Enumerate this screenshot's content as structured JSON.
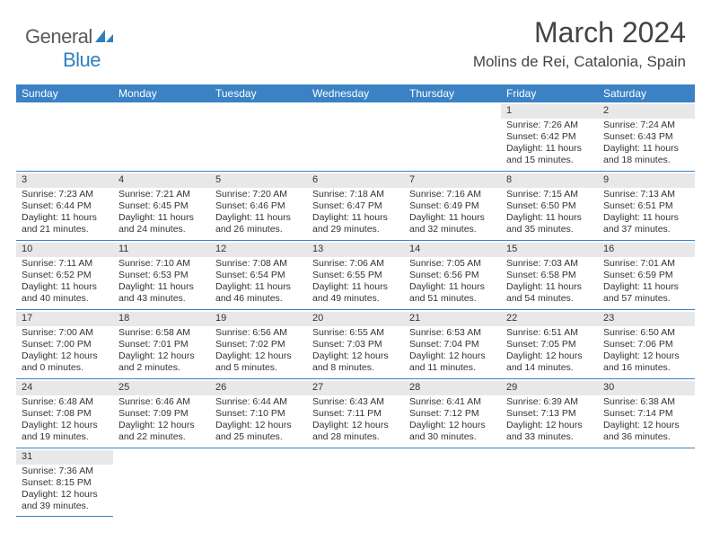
{
  "brand": {
    "text1": "General",
    "text2": "Blue"
  },
  "title": "March 2024",
  "location": "Molins de Rei, Catalonia, Spain",
  "colors": {
    "header_bg": "#3a82c4",
    "week_border": "#3a82c4",
    "daynum_bg": "#e8e8e8",
    "text": "#333333"
  },
  "dow": [
    "Sunday",
    "Monday",
    "Tuesday",
    "Wednesday",
    "Thursday",
    "Friday",
    "Saturday"
  ],
  "weeks": [
    [
      {
        "n": "",
        "lines": []
      },
      {
        "n": "",
        "lines": []
      },
      {
        "n": "",
        "lines": []
      },
      {
        "n": "",
        "lines": []
      },
      {
        "n": "",
        "lines": []
      },
      {
        "n": "1",
        "lines": [
          "Sunrise: 7:26 AM",
          "Sunset: 6:42 PM",
          "Daylight: 11 hours and 15 minutes."
        ]
      },
      {
        "n": "2",
        "lines": [
          "Sunrise: 7:24 AM",
          "Sunset: 6:43 PM",
          "Daylight: 11 hours and 18 minutes."
        ]
      }
    ],
    [
      {
        "n": "3",
        "lines": [
          "Sunrise: 7:23 AM",
          "Sunset: 6:44 PM",
          "Daylight: 11 hours and 21 minutes."
        ]
      },
      {
        "n": "4",
        "lines": [
          "Sunrise: 7:21 AM",
          "Sunset: 6:45 PM",
          "Daylight: 11 hours and 24 minutes."
        ]
      },
      {
        "n": "5",
        "lines": [
          "Sunrise: 7:20 AM",
          "Sunset: 6:46 PM",
          "Daylight: 11 hours and 26 minutes."
        ]
      },
      {
        "n": "6",
        "lines": [
          "Sunrise: 7:18 AM",
          "Sunset: 6:47 PM",
          "Daylight: 11 hours and 29 minutes."
        ]
      },
      {
        "n": "7",
        "lines": [
          "Sunrise: 7:16 AM",
          "Sunset: 6:49 PM",
          "Daylight: 11 hours and 32 minutes."
        ]
      },
      {
        "n": "8",
        "lines": [
          "Sunrise: 7:15 AM",
          "Sunset: 6:50 PM",
          "Daylight: 11 hours and 35 minutes."
        ]
      },
      {
        "n": "9",
        "lines": [
          "Sunrise: 7:13 AM",
          "Sunset: 6:51 PM",
          "Daylight: 11 hours and 37 minutes."
        ]
      }
    ],
    [
      {
        "n": "10",
        "lines": [
          "Sunrise: 7:11 AM",
          "Sunset: 6:52 PM",
          "Daylight: 11 hours and 40 minutes."
        ]
      },
      {
        "n": "11",
        "lines": [
          "Sunrise: 7:10 AM",
          "Sunset: 6:53 PM",
          "Daylight: 11 hours and 43 minutes."
        ]
      },
      {
        "n": "12",
        "lines": [
          "Sunrise: 7:08 AM",
          "Sunset: 6:54 PM",
          "Daylight: 11 hours and 46 minutes."
        ]
      },
      {
        "n": "13",
        "lines": [
          "Sunrise: 7:06 AM",
          "Sunset: 6:55 PM",
          "Daylight: 11 hours and 49 minutes."
        ]
      },
      {
        "n": "14",
        "lines": [
          "Sunrise: 7:05 AM",
          "Sunset: 6:56 PM",
          "Daylight: 11 hours and 51 minutes."
        ]
      },
      {
        "n": "15",
        "lines": [
          "Sunrise: 7:03 AM",
          "Sunset: 6:58 PM",
          "Daylight: 11 hours and 54 minutes."
        ]
      },
      {
        "n": "16",
        "lines": [
          "Sunrise: 7:01 AM",
          "Sunset: 6:59 PM",
          "Daylight: 11 hours and 57 minutes."
        ]
      }
    ],
    [
      {
        "n": "17",
        "lines": [
          "Sunrise: 7:00 AM",
          "Sunset: 7:00 PM",
          "Daylight: 12 hours and 0 minutes."
        ]
      },
      {
        "n": "18",
        "lines": [
          "Sunrise: 6:58 AM",
          "Sunset: 7:01 PM",
          "Daylight: 12 hours and 2 minutes."
        ]
      },
      {
        "n": "19",
        "lines": [
          "Sunrise: 6:56 AM",
          "Sunset: 7:02 PM",
          "Daylight: 12 hours and 5 minutes."
        ]
      },
      {
        "n": "20",
        "lines": [
          "Sunrise: 6:55 AM",
          "Sunset: 7:03 PM",
          "Daylight: 12 hours and 8 minutes."
        ]
      },
      {
        "n": "21",
        "lines": [
          "Sunrise: 6:53 AM",
          "Sunset: 7:04 PM",
          "Daylight: 12 hours and 11 minutes."
        ]
      },
      {
        "n": "22",
        "lines": [
          "Sunrise: 6:51 AM",
          "Sunset: 7:05 PM",
          "Daylight: 12 hours and 14 minutes."
        ]
      },
      {
        "n": "23",
        "lines": [
          "Sunrise: 6:50 AM",
          "Sunset: 7:06 PM",
          "Daylight: 12 hours and 16 minutes."
        ]
      }
    ],
    [
      {
        "n": "24",
        "lines": [
          "Sunrise: 6:48 AM",
          "Sunset: 7:08 PM",
          "Daylight: 12 hours and 19 minutes."
        ]
      },
      {
        "n": "25",
        "lines": [
          "Sunrise: 6:46 AM",
          "Sunset: 7:09 PM",
          "Daylight: 12 hours and 22 minutes."
        ]
      },
      {
        "n": "26",
        "lines": [
          "Sunrise: 6:44 AM",
          "Sunset: 7:10 PM",
          "Daylight: 12 hours and 25 minutes."
        ]
      },
      {
        "n": "27",
        "lines": [
          "Sunrise: 6:43 AM",
          "Sunset: 7:11 PM",
          "Daylight: 12 hours and 28 minutes."
        ]
      },
      {
        "n": "28",
        "lines": [
          "Sunrise: 6:41 AM",
          "Sunset: 7:12 PM",
          "Daylight: 12 hours and 30 minutes."
        ]
      },
      {
        "n": "29",
        "lines": [
          "Sunrise: 6:39 AM",
          "Sunset: 7:13 PM",
          "Daylight: 12 hours and 33 minutes."
        ]
      },
      {
        "n": "30",
        "lines": [
          "Sunrise: 6:38 AM",
          "Sunset: 7:14 PM",
          "Daylight: 12 hours and 36 minutes."
        ]
      }
    ],
    [
      {
        "n": "31",
        "lines": [
          "Sunrise: 7:36 AM",
          "Sunset: 8:15 PM",
          "Daylight: 12 hours and 39 minutes."
        ]
      },
      {
        "n": "",
        "lines": []
      },
      {
        "n": "",
        "lines": []
      },
      {
        "n": "",
        "lines": []
      },
      {
        "n": "",
        "lines": []
      },
      {
        "n": "",
        "lines": []
      },
      {
        "n": "",
        "lines": []
      }
    ]
  ]
}
